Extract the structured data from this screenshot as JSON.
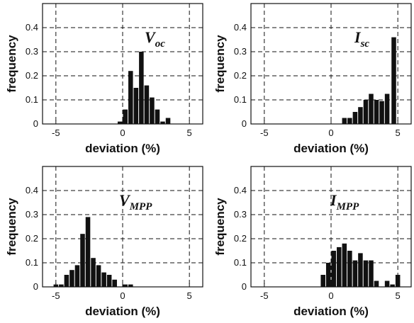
{
  "chart_data": [
    {
      "type": "bar",
      "panel_label": "V",
      "panel_label_sub": "oc",
      "xlabel": "deviation (%)",
      "ylabel": "frequency",
      "xlim": [
        -6,
        6
      ],
      "ylim": [
        0,
        0.5
      ],
      "xticks": [
        "-5",
        "0",
        "5"
      ],
      "yticks": [
        "0",
        "0.1",
        "0.2",
        "0.3",
        "0.4"
      ],
      "bin_width": 0.4,
      "grid": "dashed",
      "bins": [
        {
          "x": -0.2,
          "y": 0.01
        },
        {
          "x": 0.2,
          "y": 0.06
        },
        {
          "x": 0.6,
          "y": 0.22
        },
        {
          "x": 1.0,
          "y": 0.15
        },
        {
          "x": 1.4,
          "y": 0.3
        },
        {
          "x": 1.8,
          "y": 0.16
        },
        {
          "x": 2.2,
          "y": 0.11
        },
        {
          "x": 2.6,
          "y": 0.06
        },
        {
          "x": 3.0,
          "y": 0.01
        },
        {
          "x": 3.4,
          "y": 0.025
        }
      ]
    },
    {
      "type": "bar",
      "panel_label": "I",
      "panel_label_sub": "sc",
      "xlabel": "deviation (%)",
      "ylabel": "frequency",
      "xlim": [
        -6,
        6
      ],
      "ylim": [
        0,
        0.5
      ],
      "xticks": [
        "-5",
        "0",
        "5"
      ],
      "yticks": [
        "0",
        "0.1",
        "0.2",
        "0.3",
        "0.4"
      ],
      "bin_width": 0.4,
      "grid": "dashed",
      "bins": [
        {
          "x": 1.0,
          "y": 0.025
        },
        {
          "x": 1.4,
          "y": 0.025
        },
        {
          "x": 1.8,
          "y": 0.05
        },
        {
          "x": 2.2,
          "y": 0.07
        },
        {
          "x": 2.6,
          "y": 0.1
        },
        {
          "x": 3.0,
          "y": 0.125
        },
        {
          "x": 3.4,
          "y": 0.1
        },
        {
          "x": 3.8,
          "y": 0.095
        },
        {
          "x": 4.2,
          "y": 0.125
        },
        {
          "x": 4.7,
          "y": 0.36
        }
      ]
    },
    {
      "type": "bar",
      "panel_label": "V",
      "panel_label_sub": "MPP",
      "xlabel": "deviation (%)",
      "ylabel": "frequency",
      "xlim": [
        -6,
        6
      ],
      "ylim": [
        0,
        0.5
      ],
      "xticks": [
        "-5",
        "0",
        "5"
      ],
      "yticks": [
        "0",
        "0.1",
        "0.2",
        "0.3",
        "0.4"
      ],
      "bin_width": 0.4,
      "grid": "dashed",
      "bins": [
        {
          "x": -5.0,
          "y": 0.01
        },
        {
          "x": -4.6,
          "y": 0.01
        },
        {
          "x": -4.2,
          "y": 0.05
        },
        {
          "x": -3.8,
          "y": 0.07
        },
        {
          "x": -3.4,
          "y": 0.09
        },
        {
          "x": -3.0,
          "y": 0.22
        },
        {
          "x": -2.6,
          "y": 0.29
        },
        {
          "x": -2.2,
          "y": 0.12
        },
        {
          "x": -1.8,
          "y": 0.09
        },
        {
          "x": -1.4,
          "y": 0.06
        },
        {
          "x": -1.0,
          "y": 0.05
        },
        {
          "x": -0.6,
          "y": 0.03
        },
        {
          "x": 0.2,
          "y": 0.01
        },
        {
          "x": 0.6,
          "y": 0.01
        }
      ]
    },
    {
      "type": "bar",
      "panel_label": "I",
      "panel_label_sub": "MPP",
      "xlabel": "deviation (%)",
      "ylabel": "frequency",
      "xlim": [
        -6,
        6
      ],
      "ylim": [
        0,
        0.5
      ],
      "xticks": [
        "-5",
        "0",
        "5"
      ],
      "yticks": [
        "0",
        "0.1",
        "0.2",
        "0.3",
        "0.4"
      ],
      "bin_width": 0.4,
      "grid": "dashed",
      "bins": [
        {
          "x": -0.6,
          "y": 0.05
        },
        {
          "x": -0.2,
          "y": 0.1
        },
        {
          "x": 0.2,
          "y": 0.15
        },
        {
          "x": 0.6,
          "y": 0.165
        },
        {
          "x": 1.0,
          "y": 0.18
        },
        {
          "x": 1.4,
          "y": 0.15
        },
        {
          "x": 1.8,
          "y": 0.11
        },
        {
          "x": 2.2,
          "y": 0.14
        },
        {
          "x": 2.6,
          "y": 0.11
        },
        {
          "x": 3.0,
          "y": 0.11
        },
        {
          "x": 3.4,
          "y": 0.025
        },
        {
          "x": 4.2,
          "y": 0.025
        },
        {
          "x": 4.6,
          "y": 0.01
        },
        {
          "x": 5.0,
          "y": 0.05
        }
      ]
    }
  ]
}
